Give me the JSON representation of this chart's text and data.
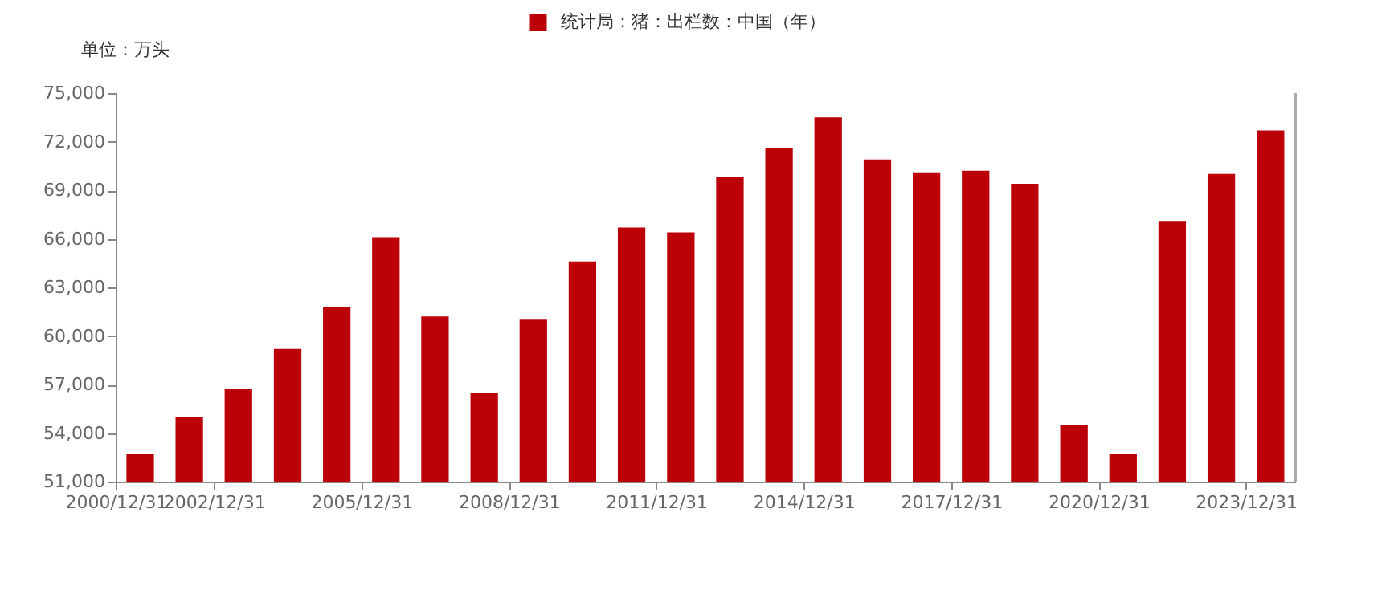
{
  "chart_data": {
    "type": "bar",
    "ylabel": "单位：万头",
    "x": [
      "2001-07-01",
      "2002-07-01",
      "2003-07-01",
      "2004-07-01",
      "2005-07-01",
      "2006-07-01",
      "2007-07-01",
      "2008-07-01",
      "2009-07-01",
      "2010-07-01",
      "2011-07-01",
      "2012-07-01",
      "2013-07-01",
      "2014-07-01",
      "2015-07-01",
      "2016-07-01",
      "2017-07-01",
      "2018-07-01",
      "2019-07-01",
      "2020-07-01",
      "2021-07-01",
      "2022-07-01",
      "2023-07-01",
      "2024-07-01"
    ],
    "series": [
      {
        "name": "统计局：猪：出栏数：中国（年）",
        "color": "#bb0008",
        "values": [
          52700,
          55000,
          56700,
          59200,
          61800,
          66100,
          61200,
          56500,
          61000,
          64600,
          66700,
          66400,
          69800,
          71600,
          73500,
          70900,
          70100,
          70200,
          69400,
          54500,
          52700,
          67100,
          70000,
          72700
        ]
      }
    ],
    "xlim": [
      "2000-12-31",
      "2024-12-31"
    ],
    "xticks": [
      {
        "value": "2000-12-31",
        "label": "2000/12/31"
      },
      {
        "value": "2002-12-31",
        "label": "2002/12/31"
      },
      {
        "value": "2005-12-31",
        "label": "2005/12/31"
      },
      {
        "value": "2008-12-31",
        "label": "2008/12/31"
      },
      {
        "value": "2011-12-31",
        "label": "2011/12/31"
      },
      {
        "value": "2014-12-31",
        "label": "2014/12/31"
      },
      {
        "value": "2017-12-31",
        "label": "2017/12/31"
      },
      {
        "value": "2020-12-31",
        "label": "2020/12/31"
      },
      {
        "value": "2023-12-31",
        "label": "2023/12/31"
      }
    ],
    "ylim": [
      51000,
      75000
    ],
    "yticks": [
      {
        "value": 51000,
        "label": "51,000"
      },
      {
        "value": 54000,
        "label": "54,000"
      },
      {
        "value": 57000,
        "label": "57,000"
      },
      {
        "value": 60000,
        "label": "60,000"
      },
      {
        "value": 63000,
        "label": "63,000"
      },
      {
        "value": 66000,
        "label": "66,000"
      },
      {
        "value": 69000,
        "label": "69,000"
      },
      {
        "value": 72000,
        "label": "72,000"
      },
      {
        "value": 75000,
        "label": "75,000"
      }
    ],
    "grid": false,
    "legend": "top"
  }
}
